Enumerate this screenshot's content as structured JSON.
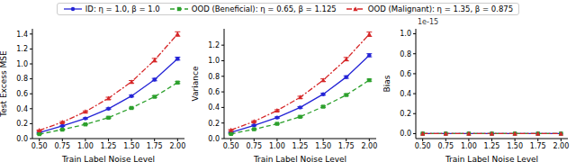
{
  "chart_data": [
    {
      "type": "line",
      "legend": "top",
      "xlabel": "Train Label Noise Level",
      "ylabel": "Test Excess MSE",
      "x": [
        0.5,
        0.75,
        1.0,
        1.25,
        1.5,
        1.75,
        2.0
      ],
      "xlim": [
        0.425,
        2.075
      ],
      "xticks": [
        {
          "value": 0.5,
          "label": "0.50"
        },
        {
          "value": 0.75,
          "label": "0.75"
        },
        {
          "value": 1.0,
          "label": "1.00"
        },
        {
          "value": 1.25,
          "label": "1.25"
        },
        {
          "value": 1.5,
          "label": "1.50"
        },
        {
          "value": 1.75,
          "label": "1.75"
        },
        {
          "value": 2.0,
          "label": "2.00"
        }
      ],
      "ylim": [
        0.0,
        1.47
      ],
      "yticks": [
        {
          "value": 0,
          "label": "0.0"
        },
        {
          "value": 0.2,
          "label": "0.2"
        },
        {
          "value": 0.4,
          "label": "0.4"
        },
        {
          "value": 0.6,
          "label": "0.6"
        },
        {
          "value": 0.8,
          "label": "0.8"
        },
        {
          "value": 1.0,
          "label": "1.0"
        },
        {
          "value": 1.2,
          "label": "1.2"
        },
        {
          "value": 1.4,
          "label": "1.4"
        }
      ],
      "series": [
        {
          "name": "ID: η = 1.0, β = 1.0",
          "color": "#2424d6",
          "marker": "circle",
          "line_style": "solid",
          "values": [
            0.08,
            0.17,
            0.27,
            0.4,
            0.57,
            0.79,
            1.07
          ],
          "errors": [
            0.005,
            0.007,
            0.008,
            0.01,
            0.012,
            0.016,
            0.02
          ]
        },
        {
          "name": "OOD (Beneficial): η = 0.65, β = 1.125",
          "color": "#2ca02c",
          "marker": "square",
          "line_style": "dashed",
          "values": [
            0.06,
            0.12,
            0.19,
            0.28,
            0.41,
            0.56,
            0.75
          ],
          "errors": [
            0.004,
            0.005,
            0.006,
            0.008,
            0.009,
            0.011,
            0.013
          ]
        },
        {
          "name": "OOD (Malignant): η = 1.35, β = 0.875",
          "color": "#d62728",
          "marker": "triangle",
          "line_style": "dashdot",
          "values": [
            0.11,
            0.22,
            0.36,
            0.54,
            0.76,
            1.05,
            1.4
          ],
          "errors": [
            0.006,
            0.009,
            0.011,
            0.014,
            0.017,
            0.024,
            0.03
          ]
        }
      ]
    },
    {
      "type": "line",
      "xlabel": "Train Label Noise Level",
      "ylabel": "Variance",
      "x": [
        0.5,
        0.75,
        1.0,
        1.25,
        1.5,
        1.75,
        2.0
      ],
      "xlim": [
        0.425,
        2.075
      ],
      "xticks": [
        {
          "value": 0.5,
          "label": "0.50"
        },
        {
          "value": 0.75,
          "label": "0.75"
        },
        {
          "value": 1.0,
          "label": "1.00"
        },
        {
          "value": 1.25,
          "label": "1.25"
        },
        {
          "value": 1.5,
          "label": "1.50"
        },
        {
          "value": 1.75,
          "label": "1.75"
        },
        {
          "value": 2.0,
          "label": "2.00"
        }
      ],
      "ylim": [
        0.0,
        1.41
      ],
      "yticks": [
        {
          "value": 0,
          "label": "0.0"
        },
        {
          "value": 0.2,
          "label": "0.2"
        },
        {
          "value": 0.4,
          "label": "0.4"
        },
        {
          "value": 0.6,
          "label": "0.6"
        },
        {
          "value": 0.8,
          "label": "0.8"
        },
        {
          "value": 1.0,
          "label": "1.0"
        },
        {
          "value": 1.2,
          "label": "1.2"
        }
      ],
      "series": [
        {
          "name": "ID: η = 1.0, β = 1.0",
          "color": "#2424d6",
          "marker": "circle",
          "line_style": "solid",
          "values": [
            0.08,
            0.17,
            0.27,
            0.4,
            0.57,
            0.79,
            1.07
          ],
          "errors": [
            0.005,
            0.007,
            0.008,
            0.01,
            0.012,
            0.016,
            0.02
          ]
        },
        {
          "name": "OOD (Beneficial): η = 0.65, β = 1.125",
          "color": "#2ca02c",
          "marker": "square",
          "line_style": "dashed",
          "values": [
            0.06,
            0.12,
            0.19,
            0.28,
            0.41,
            0.56,
            0.75
          ],
          "errors": [
            0.004,
            0.005,
            0.006,
            0.008,
            0.009,
            0.011,
            0.013
          ]
        },
        {
          "name": "OOD (Malignant): η = 1.35, β = 0.875",
          "color": "#d62728",
          "marker": "triangle",
          "line_style": "dashdot",
          "values": [
            0.11,
            0.22,
            0.36,
            0.53,
            0.75,
            1.02,
            1.34
          ],
          "errors": [
            0.006,
            0.009,
            0.011,
            0.014,
            0.017,
            0.022,
            0.028
          ]
        }
      ]
    },
    {
      "type": "line",
      "xlabel": "Train Label Noise Level",
      "ylabel": "Bias",
      "annotation": "1e-15",
      "x": [
        0.5,
        0.75,
        1.0,
        1.25,
        1.5,
        1.75,
        2.0
      ],
      "xlim": [
        0.425,
        2.075
      ],
      "xticks": [
        {
          "value": 0.5,
          "label": "0.50"
        },
        {
          "value": 0.75,
          "label": "0.75"
        },
        {
          "value": 1.0,
          "label": "1.00"
        },
        {
          "value": 1.25,
          "label": "1.25"
        },
        {
          "value": 1.5,
          "label": "1.50"
        },
        {
          "value": 1.75,
          "label": "1.75"
        },
        {
          "value": 2.0,
          "label": "2.00"
        }
      ],
      "ylim": [
        -5e-17,
        1.05e-15
      ],
      "yticks": [
        {
          "value": 0,
          "label": "0.0"
        },
        {
          "value": 2e-16,
          "label": "0.2"
        },
        {
          "value": 4e-16,
          "label": "0.4"
        },
        {
          "value": 6e-16,
          "label": "0.6"
        },
        {
          "value": 8e-16,
          "label": "0.8"
        },
        {
          "value": 1e-15,
          "label": "1.0"
        }
      ],
      "series": [
        {
          "name": "ID: η = 1.0, β = 1.0",
          "color": "#2424d6",
          "marker": "circle",
          "line_style": "solid",
          "values": [
            0,
            0,
            0,
            0,
            0,
            0,
            0
          ],
          "errors": [
            0,
            0,
            0,
            0,
            0,
            0,
            0
          ]
        },
        {
          "name": "OOD (Beneficial): η = 0.65, β = 1.125",
          "color": "#2ca02c",
          "marker": "square",
          "line_style": "dashed",
          "values": [
            0,
            0,
            0,
            0,
            0,
            0,
            0
          ],
          "errors": [
            0,
            0,
            0,
            0,
            0,
            0,
            0
          ]
        },
        {
          "name": "OOD (Malignant): η = 1.35, β = 0.875",
          "color": "#d62728",
          "marker": "triangle",
          "line_style": "dashdot",
          "values": [
            0,
            0,
            0,
            0,
            0,
            0,
            0
          ],
          "errors": [
            0,
            0,
            0,
            0,
            0,
            0,
            0
          ]
        }
      ]
    }
  ]
}
